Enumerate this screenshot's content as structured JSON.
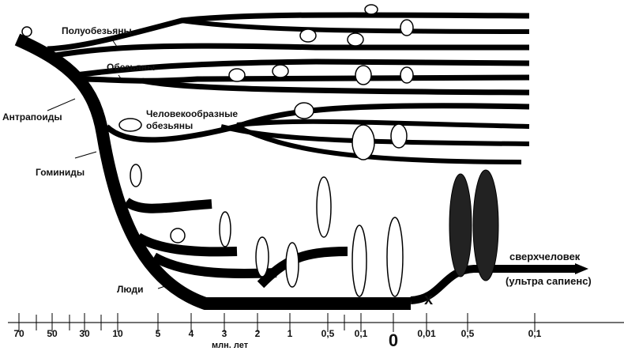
{
  "labels": {
    "prosimians": "Полуобезьяны",
    "monkeys": "Обезьяны",
    "apes_line1": "Человекообразные",
    "apes_line2": "обезьяны",
    "anthropoids": "Антрапоиды",
    "hominids": "Гоминиды",
    "humans": "Люди",
    "x_mark": "x",
    "superhuman_line1": "сверхчеловек",
    "superhuman_line2": "(ультра сапиенс)"
  },
  "axis": {
    "unit": "млн. лет",
    "ticks": [
      "70",
      "50",
      "30",
      "10",
      "5",
      "4",
      "3",
      "2",
      "1",
      "0,5",
      "0,1",
      "0",
      "0,01",
      "0,5",
      "0,1"
    ]
  }
}
